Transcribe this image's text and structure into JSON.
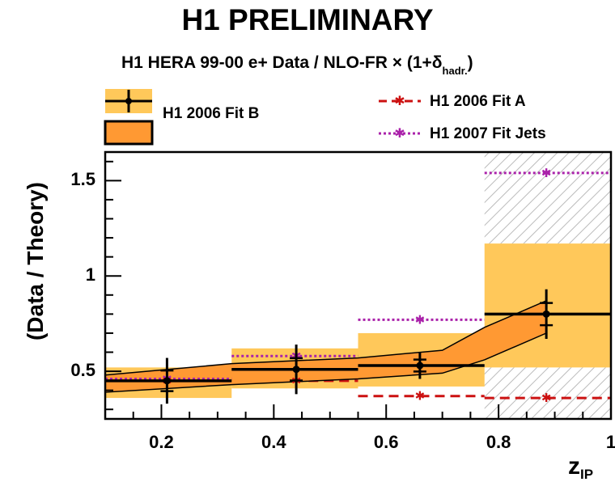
{
  "figure": {
    "title": "H1 PRELIMINARY",
    "subtitle_main": "H1 HERA 99-00 e+ Data / NLO-FR",
    "subtitle_factor": "× (1+δ",
    "subtitle_sub": "hadr.",
    "subtitle_close": ")",
    "ylabel": "(Data / Theory)",
    "xlabel_main": "z",
    "xlabel_sub": "IP"
  },
  "legend": {
    "fitB": "H1 2006 Fit B",
    "fitA": "H1 2006 Fit A",
    "jets": "H1 2007 Fit Jets"
  },
  "colors": {
    "fitB_band": "#ff9933",
    "hadr_band": "#ffc85a",
    "fitA": "#cc1111",
    "jets": "#aa22aa",
    "hatch": "#bbbbbb"
  },
  "chart_data": {
    "type": "scatter",
    "title": "H1 PRELIMINARY",
    "subtitle": "H1 HERA 99-00 e+ Data / NLO-FR × (1+δhadr.)",
    "xlabel": "zIP",
    "ylabel": "(Data / Theory)",
    "xlim": [
      0.1,
      1.0
    ],
    "ylim": [
      0.25,
      1.65
    ],
    "xticks": [
      0.2,
      0.4,
      0.6,
      0.8,
      1
    ],
    "xtick_labels": [
      "0.2",
      "0.4",
      "0.6",
      "0.8",
      "1"
    ],
    "yticks": [
      0.5,
      1,
      1.5
    ],
    "ytick_labels": [
      "0.5",
      "1",
      "1.5"
    ],
    "bins": [
      [
        0.1,
        0.325
      ],
      [
        0.325,
        0.55
      ],
      [
        0.55,
        0.775
      ],
      [
        0.775,
        1.0
      ]
    ],
    "data": {
      "name": "H1 HERA 99-00 e+ Data / NLO-FR",
      "x": [
        0.21,
        0.44,
        0.66,
        0.885
      ],
      "y": [
        0.45,
        0.51,
        0.53,
        0.8
      ],
      "y_err": [
        0.12,
        0.13,
        0.07,
        0.13
      ]
    },
    "hadronisation_band": {
      "lower": [
        0.36,
        0.41,
        0.42,
        0.52
      ],
      "upper": [
        0.52,
        0.62,
        0.7,
        1.17
      ]
    },
    "fitB_band": {
      "name": "H1 2006 Fit B",
      "x": [
        0.1,
        0.325,
        0.55,
        0.7,
        0.775,
        0.885
      ],
      "lower": [
        0.39,
        0.43,
        0.46,
        0.49,
        0.56,
        0.7
      ],
      "upper": [
        0.48,
        0.54,
        0.57,
        0.61,
        0.73,
        0.87
      ]
    },
    "fitA": {
      "name": "H1 2006 Fit A",
      "values": [
        0.45,
        0.45,
        0.37,
        0.36
      ],
      "markers_x": [
        0.21,
        0.44,
        0.66,
        0.885
      ]
    },
    "fitJets": {
      "name": "H1 2007 Fit Jets",
      "values": [
        0.46,
        0.58,
        0.77,
        1.54
      ],
      "markers_x": [
        0.21,
        0.44,
        0.66,
        0.885
      ]
    },
    "hatched_region": {
      "x": [
        0.775,
        1.0
      ],
      "y_ranges": [
        [
          0.25,
          0.52
        ],
        [
          1.17,
          1.65
        ]
      ]
    },
    "grid": false,
    "legend_position": "top"
  }
}
